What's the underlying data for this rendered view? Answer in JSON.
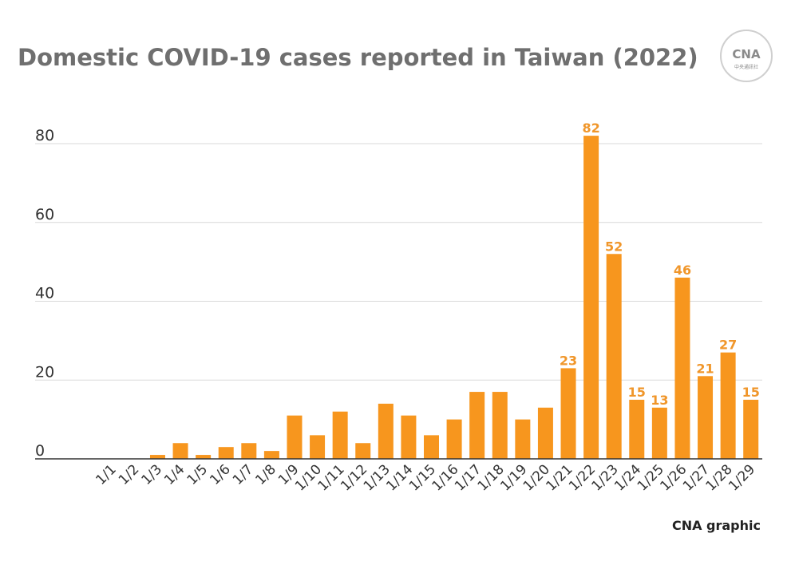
{
  "chart_data": {
    "type": "bar",
    "title": "Domestic COVID-19 cases reported in Taiwan (2022)",
    "xlabel": "",
    "ylabel": "",
    "categories": [
      "1/1",
      "1/2",
      "1/3",
      "1/4",
      "1/5",
      "1/6",
      "1/7",
      "1/8",
      "1/9",
      "1/10",
      "1/11",
      "1/12",
      "1/13",
      "1/14",
      "1/15",
      "1/16",
      "1/17",
      "1/18",
      "1/19",
      "1/20",
      "1/21",
      "1/22",
      "1/23",
      "1/24",
      "1/25",
      "1/26",
      "1/27",
      "1/28",
      "1/29"
    ],
    "values": [
      0,
      0,
      1,
      4,
      1,
      3,
      4,
      2,
      11,
      6,
      12,
      4,
      14,
      11,
      6,
      10,
      17,
      17,
      10,
      13,
      23,
      82,
      52,
      15,
      13,
      46,
      21,
      27,
      15
    ],
    "data_labels": [
      null,
      null,
      null,
      null,
      null,
      null,
      null,
      null,
      null,
      null,
      null,
      null,
      null,
      null,
      null,
      null,
      null,
      null,
      null,
      null,
      "23",
      "82",
      "52",
      "15",
      "13",
      "46",
      "21",
      "27",
      "15"
    ],
    "yticks": [
      "0",
      "20",
      "40",
      "60",
      "80"
    ],
    "ylim": [
      0,
      80
    ],
    "grid": "horizontal",
    "legend": "none",
    "bar_color": "#f7961e",
    "label_color": "#f0962a"
  },
  "source": "CNA graphic",
  "logo": {
    "main": "CNA",
    "sub": "中央通訊社"
  }
}
